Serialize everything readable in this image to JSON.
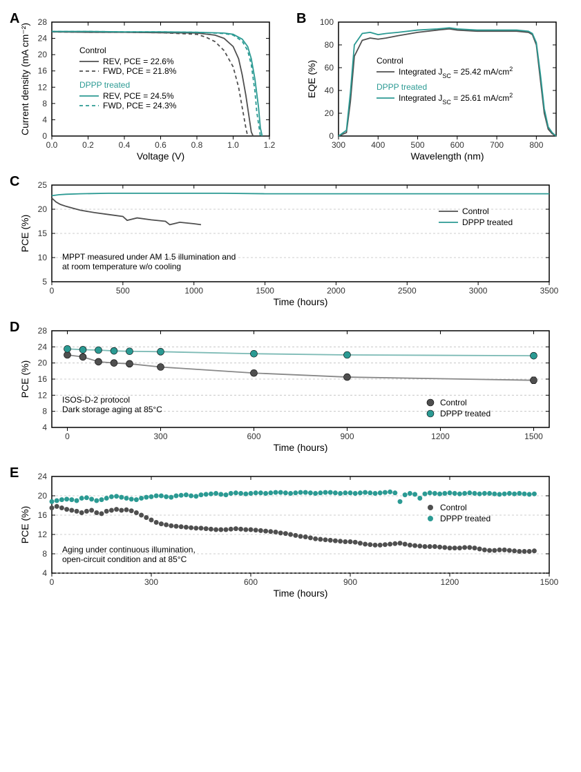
{
  "colors": {
    "control": "#4f4f4f",
    "dppp": "#2b9a93",
    "axis": "#000000",
    "grid": "#bdbdbd",
    "bg": "#ffffff",
    "tick_label": "#333333"
  },
  "fonts": {
    "panel_label_size": 20,
    "axis_label_size": 14,
    "tick_label_size": 12,
    "legend_size": 12,
    "note_size": 12
  },
  "panelA": {
    "type": "line",
    "label": "A",
    "xlabel": "Voltage (V)",
    "ylabel": "Current density (mA cm⁻²)",
    "xlim": [
      0,
      1.2
    ],
    "ylim": [
      0,
      28
    ],
    "xticks": [
      0.0,
      0.2,
      0.4,
      0.6,
      0.8,
      1.0,
      1.2
    ],
    "yticks": [
      0,
      4,
      8,
      12,
      16,
      20,
      24,
      28
    ],
    "legend": {
      "control_title": "Control",
      "control_rev": "REV, PCE =  22.6%",
      "control_fwd": "FWD, PCE = 21.8%",
      "dppp_title": "DPPP treated",
      "dppp_rev": "REV, PCE =  24.5%",
      "dppp_fwd": "FWD, PCE = 24.3%"
    },
    "series": {
      "control_rev": {
        "color": "#4f4f4f",
        "dash": "solid",
        "x": [
          0,
          0.2,
          0.4,
          0.6,
          0.8,
          0.9,
          0.95,
          1.0,
          1.03,
          1.05,
          1.07,
          1.09,
          1.1,
          1.11
        ],
        "y": [
          25.6,
          25.5,
          25.5,
          25.4,
          25.3,
          24.8,
          24.0,
          22.0,
          19.0,
          15.0,
          10.0,
          4.0,
          1.0,
          0
        ]
      },
      "control_fwd": {
        "color": "#4f4f4f",
        "dash": "5,4",
        "x": [
          0,
          0.2,
          0.4,
          0.6,
          0.8,
          0.85,
          0.9,
          0.95,
          1.0,
          1.03,
          1.05,
          1.07,
          1.08
        ],
        "y": [
          25.6,
          25.5,
          25.5,
          25.4,
          25.0,
          24.3,
          23.2,
          21.0,
          17.0,
          12.0,
          7.0,
          2.0,
          0
        ]
      },
      "dppp_rev": {
        "color": "#2b9a93",
        "dash": "solid",
        "x": [
          0,
          0.2,
          0.4,
          0.6,
          0.8,
          0.95,
          1.0,
          1.05,
          1.08,
          1.1,
          1.12,
          1.14,
          1.15,
          1.16
        ],
        "y": [
          25.7,
          25.7,
          25.6,
          25.6,
          25.5,
          25.3,
          25.0,
          23.8,
          22.0,
          19.0,
          14.0,
          7.0,
          2.0,
          0
        ]
      },
      "dppp_fwd": {
        "color": "#2b9a93",
        "dash": "5,4",
        "x": [
          0,
          0.2,
          0.4,
          0.6,
          0.8,
          0.95,
          1.0,
          1.05,
          1.08,
          1.1,
          1.12,
          1.13,
          1.15
        ],
        "y": [
          25.7,
          25.7,
          25.6,
          25.6,
          25.5,
          25.2,
          24.8,
          23.3,
          21.0,
          17.5,
          11.0,
          6.0,
          0
        ]
      }
    }
  },
  "panelB": {
    "type": "line",
    "label": "B",
    "xlabel": "Wavelength (nm)",
    "ylabel": "EQE (%)",
    "xlim": [
      300,
      850
    ],
    "ylim": [
      0,
      100
    ],
    "xticks": [
      300,
      400,
      500,
      600,
      700,
      800
    ],
    "yticks": [
      0,
      20,
      40,
      60,
      80,
      100
    ],
    "legend": {
      "control_title": "Control",
      "control_line": "Integrated Jₛᴄ = 25.42 mA/cm²",
      "dppp_title": "DPPP treated",
      "dppp_line": "Integrated Jₛᴄ = 25.61 mA/cm²"
    },
    "legend_html": {
      "control_line": "Integrated J<tspan baseline-shift='sub' font-size='9'>SC</tspan> = 25.42 mA/cm<tspan baseline-shift='super' font-size='9'>2</tspan>",
      "dppp_line": "Integrated J<tspan baseline-shift='sub' font-size='9'>SC</tspan> = 25.61 mA/cm<tspan baseline-shift='super' font-size='9'>2</tspan>"
    },
    "series": {
      "control": {
        "color": "#4f4f4f",
        "x": [
          300,
          320,
          330,
          340,
          360,
          380,
          400,
          420,
          450,
          500,
          550,
          580,
          600,
          650,
          700,
          750,
          780,
          790,
          800,
          810,
          820,
          830,
          840,
          850
        ],
        "y": [
          0,
          3,
          30,
          70,
          84,
          86,
          85,
          86,
          88,
          91,
          93,
          94,
          93,
          92,
          92,
          92,
          91,
          89,
          80,
          50,
          20,
          6,
          2,
          0
        ]
      },
      "dppp": {
        "color": "#2b9a93",
        "x": [
          300,
          320,
          330,
          340,
          360,
          380,
          400,
          420,
          450,
          500,
          550,
          580,
          600,
          650,
          700,
          750,
          780,
          790,
          800,
          810,
          820,
          830,
          840,
          850
        ],
        "y": [
          0,
          5,
          38,
          80,
          90,
          91,
          89,
          90,
          91,
          93,
          94,
          95,
          94,
          93,
          93,
          93,
          92,
          90,
          82,
          55,
          24,
          8,
          3,
          0
        ]
      }
    }
  },
  "panelC": {
    "type": "line",
    "label": "C",
    "xlabel": "Time (hours)",
    "ylabel": "PCE (%)",
    "xlim": [
      0,
      3500
    ],
    "ylim": [
      5,
      25
    ],
    "xticks": [
      0,
      500,
      1000,
      1500,
      2000,
      2500,
      3000,
      3500
    ],
    "yticks": [
      5,
      10,
      15,
      20,
      25
    ],
    "grid_y": [
      10,
      15,
      20
    ],
    "note": "MPPT measured under AM 1.5 illumination and\nat room temperature w/o cooling",
    "legend": {
      "control": "Control",
      "dppp": "DPPP treated"
    },
    "series": {
      "control": {
        "color": "#4f4f4f",
        "x": [
          0,
          30,
          60,
          100,
          150,
          200,
          300,
          400,
          500,
          530,
          600,
          700,
          800,
          830,
          900,
          1000,
          1050
        ],
        "y": [
          22.3,
          21.5,
          21.0,
          20.6,
          20.2,
          19.8,
          19.3,
          18.9,
          18.5,
          17.7,
          18.2,
          17.8,
          17.5,
          16.8,
          17.3,
          17.0,
          16.8
        ]
      },
      "dppp": {
        "color": "#2b9a93",
        "x": [
          0,
          50,
          100,
          200,
          400,
          600,
          800,
          1000,
          1200,
          1500,
          1800,
          2000,
          2200,
          2500,
          2800,
          3000,
          3200,
          3500
        ],
        "y": [
          22.8,
          23.0,
          23.1,
          23.2,
          23.3,
          23.3,
          23.3,
          23.3,
          23.3,
          23.2,
          23.2,
          23.2,
          23.2,
          23.2,
          23.2,
          23.2,
          23.2,
          23.2
        ]
      }
    }
  },
  "panelD": {
    "type": "scatter-line",
    "label": "D",
    "xlabel": "Time (hours)",
    "ylabel": "PCE (%)",
    "xlim": [
      -50,
      1550
    ],
    "ylim": [
      4,
      28
    ],
    "xticks": [
      0,
      300,
      600,
      900,
      1200,
      1500
    ],
    "yticks": [
      4,
      8,
      12,
      16,
      20,
      24,
      28
    ],
    "grid_y": [
      8,
      12,
      16,
      20,
      24
    ],
    "note": "ISOS-D-2 protocol\nDark storage aging at 85°C",
    "legend": {
      "control": "Control",
      "dppp": "DPPP treated"
    },
    "marker_size": 5,
    "error_cap": 3,
    "series": {
      "control": {
        "color": "#4f4f4f",
        "x": [
          0,
          50,
          100,
          150,
          200,
          300,
          600,
          900,
          1500
        ],
        "y": [
          22.0,
          21.5,
          20.3,
          20.0,
          19.8,
          19.0,
          17.5,
          16.5,
          15.7
        ],
        "err": [
          0.6,
          0.6,
          0.5,
          0.5,
          0.5,
          0.5,
          0.7,
          0.6,
          0.8
        ]
      },
      "dppp": {
        "color": "#2b9a93",
        "x": [
          0,
          50,
          100,
          150,
          200,
          300,
          600,
          900,
          1500
        ],
        "y": [
          23.5,
          23.3,
          23.2,
          23.0,
          22.9,
          22.8,
          22.3,
          22.0,
          21.8
        ],
        "err": [
          0.5,
          0.5,
          0.5,
          0.5,
          0.5,
          0.5,
          0.6,
          0.6,
          0.6
        ]
      }
    }
  },
  "panelE": {
    "type": "scatter",
    "label": "E",
    "xlabel": "Time (hours)",
    "ylabel": "PCE (%)",
    "xlim": [
      0,
      1500
    ],
    "ylim": [
      4,
      24
    ],
    "xticks": [
      0,
      300,
      600,
      900,
      1200,
      1500
    ],
    "yticks": [
      4,
      8,
      12,
      16,
      20,
      24
    ],
    "grid_y": [
      4,
      8,
      12,
      16,
      20
    ],
    "note": "Aging under continuous illumination,\nopen-circuit condition and at 85°C",
    "legend": {
      "control": "Control",
      "dppp": "DPPP treated"
    },
    "marker_size": 3.5,
    "series": {
      "control": {
        "color": "#4f4f4f",
        "x": [
          0,
          15,
          30,
          45,
          60,
          75,
          90,
          105,
          120,
          135,
          150,
          165,
          180,
          195,
          210,
          225,
          240,
          255,
          270,
          285,
          300,
          315,
          330,
          345,
          360,
          375,
          390,
          405,
          420,
          435,
          450,
          465,
          480,
          495,
          510,
          525,
          540,
          555,
          570,
          585,
          600,
          615,
          630,
          645,
          660,
          675,
          690,
          705,
          720,
          735,
          750,
          765,
          780,
          795,
          810,
          825,
          840,
          855,
          870,
          885,
          900,
          915,
          930,
          945,
          960,
          975,
          990,
          1005,
          1020,
          1035,
          1050,
          1065,
          1080,
          1095,
          1110,
          1125,
          1140,
          1155,
          1170,
          1185,
          1200,
          1215,
          1230,
          1245,
          1260,
          1275,
          1290,
          1305,
          1320,
          1335,
          1350,
          1365,
          1380,
          1395,
          1410,
          1425,
          1440,
          1455
        ],
        "y": [
          17.5,
          17.8,
          17.5,
          17.2,
          17.0,
          16.8,
          16.5,
          16.8,
          17.0,
          16.5,
          16.3,
          16.8,
          17.0,
          17.2,
          17.0,
          17.1,
          16.9,
          16.5,
          16.0,
          15.5,
          15.0,
          14.5,
          14.2,
          14.0,
          13.8,
          13.7,
          13.6,
          13.5,
          13.4,
          13.3,
          13.3,
          13.2,
          13.1,
          13.0,
          13.0,
          13.0,
          13.1,
          13.2,
          13.1,
          13.0,
          13.0,
          12.9,
          12.8,
          12.7,
          12.6,
          12.5,
          12.3,
          12.2,
          12.0,
          11.8,
          11.6,
          11.5,
          11.3,
          11.1,
          11.0,
          10.9,
          10.8,
          10.7,
          10.6,
          10.5,
          10.5,
          10.4,
          10.2,
          10.0,
          9.9,
          9.8,
          9.8,
          9.9,
          10.0,
          10.1,
          10.2,
          10.0,
          9.8,
          9.7,
          9.6,
          9.5,
          9.5,
          9.5,
          9.4,
          9.3,
          9.2,
          9.2,
          9.2,
          9.3,
          9.3,
          9.2,
          9.0,
          8.8,
          8.7,
          8.7,
          8.8,
          8.8,
          8.7,
          8.6,
          8.5,
          8.5,
          8.5,
          8.6
        ]
      },
      "dppp": {
        "color": "#2b9a93",
        "x": [
          0,
          15,
          30,
          45,
          60,
          75,
          90,
          105,
          120,
          135,
          150,
          165,
          180,
          195,
          210,
          225,
          240,
          255,
          270,
          285,
          300,
          315,
          330,
          345,
          360,
          375,
          390,
          405,
          420,
          435,
          450,
          465,
          480,
          495,
          510,
          525,
          540,
          555,
          570,
          585,
          600,
          615,
          630,
          645,
          660,
          675,
          690,
          705,
          720,
          735,
          750,
          765,
          780,
          795,
          810,
          825,
          840,
          855,
          870,
          885,
          900,
          915,
          930,
          945,
          960,
          975,
          990,
          1005,
          1020,
          1035,
          1050,
          1065,
          1080,
          1095,
          1110,
          1125,
          1140,
          1155,
          1170,
          1185,
          1200,
          1215,
          1230,
          1245,
          1260,
          1275,
          1290,
          1305,
          1320,
          1335,
          1350,
          1365,
          1380,
          1395,
          1410,
          1425,
          1440,
          1455
        ],
        "y": [
          18.8,
          19.0,
          19.2,
          19.3,
          19.2,
          19.0,
          19.5,
          19.6,
          19.3,
          19.0,
          19.2,
          19.5,
          19.8,
          19.9,
          19.7,
          19.5,
          19.3,
          19.2,
          19.5,
          19.7,
          19.8,
          20.0,
          20.0,
          19.8,
          19.7,
          20.0,
          20.1,
          20.2,
          20.0,
          19.9,
          20.2,
          20.3,
          20.4,
          20.5,
          20.3,
          20.2,
          20.5,
          20.6,
          20.5,
          20.4,
          20.5,
          20.6,
          20.6,
          20.5,
          20.6,
          20.7,
          20.7,
          20.6,
          20.5,
          20.6,
          20.7,
          20.7,
          20.6,
          20.5,
          20.6,
          20.7,
          20.7,
          20.6,
          20.5,
          20.6,
          20.6,
          20.5,
          20.6,
          20.7,
          20.6,
          20.5,
          20.6,
          20.7,
          20.8,
          20.6,
          18.8,
          20.2,
          20.5,
          20.3,
          19.5,
          20.4,
          20.6,
          20.5,
          20.4,
          20.5,
          20.6,
          20.5,
          20.4,
          20.5,
          20.6,
          20.5,
          20.4,
          20.5,
          20.5,
          20.4,
          20.3,
          20.4,
          20.5,
          20.4,
          20.5,
          20.4,
          20.3,
          20.4
        ]
      }
    }
  }
}
